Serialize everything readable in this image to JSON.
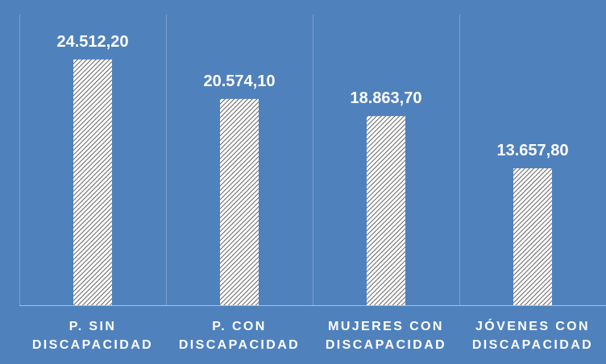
{
  "chart_data": {
    "type": "bar",
    "categories": [
      [
        "P. SIN",
        "DISCAPACIDAD"
      ],
      [
        "P. CON",
        "DISCAPACIDAD"
      ],
      [
        "MUJERES CON",
        "DISCAPACIDAD"
      ],
      [
        "JÓVENES CON",
        "DISCAPACIDAD"
      ]
    ],
    "values": [
      24512.2,
      20574.1,
      18863.7,
      13657.8
    ],
    "data_labels": [
      "24.512,20",
      "20.574,10",
      "18.863,70",
      "13.657,80"
    ],
    "title": "",
    "xlabel": "",
    "ylabel": "",
    "ylim": [
      0,
      29000
    ],
    "grid": "vertical category separators",
    "legend": "none",
    "bar_pattern": "hatched",
    "colors": {
      "background": "#4f81bd",
      "bar_fill": "#ffffff",
      "bar_hatch": "#3b3b3b",
      "gridline": "#7fa1cc",
      "axis": "#a9c0dc",
      "text": "#ffffff"
    }
  }
}
